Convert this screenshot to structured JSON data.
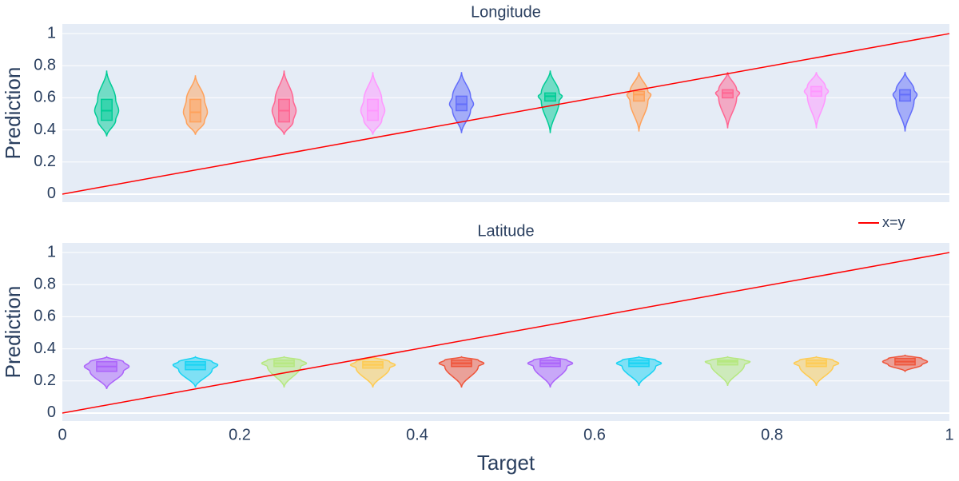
{
  "chart_data": [
    {
      "type": "violin",
      "title": "Longitude",
      "ylabel": "Prediction",
      "xlim": [
        0,
        1
      ],
      "ylim": [
        -0.05,
        1.06
      ],
      "yticks": [
        0,
        0.2,
        0.4,
        0.6,
        0.8,
        1
      ],
      "grid": true,
      "violins": [
        {
          "x": 0.05,
          "color": "#00cc96",
          "min": 0.36,
          "q1": 0.46,
          "median": 0.52,
          "q3": 0.59,
          "max": 0.77
        },
        {
          "x": 0.15,
          "color": "#ffa15a",
          "min": 0.37,
          "q1": 0.45,
          "median": 0.51,
          "q3": 0.59,
          "max": 0.74
        },
        {
          "x": 0.25,
          "color": "#ff6692",
          "min": 0.37,
          "q1": 0.45,
          "median": 0.52,
          "q3": 0.59,
          "max": 0.77
        },
        {
          "x": 0.35,
          "color": "#ff97ff",
          "min": 0.37,
          "q1": 0.46,
          "median": 0.52,
          "q3": 0.59,
          "max": 0.76
        },
        {
          "x": 0.45,
          "color": "#636efa",
          "min": 0.38,
          "q1": 0.52,
          "median": 0.56,
          "q3": 0.61,
          "max": 0.76
        },
        {
          "x": 0.55,
          "color": "#00cc96",
          "min": 0.38,
          "q1": 0.58,
          "median": 0.61,
          "q3": 0.63,
          "max": 0.77
        },
        {
          "x": 0.65,
          "color": "#ffa15a",
          "min": 0.39,
          "q1": 0.58,
          "median": 0.62,
          "q3": 0.64,
          "max": 0.76
        },
        {
          "x": 0.75,
          "color": "#ff6692",
          "min": 0.41,
          "q1": 0.6,
          "median": 0.63,
          "q3": 0.65,
          "max": 0.76
        },
        {
          "x": 0.85,
          "color": "#ff97ff",
          "min": 0.41,
          "q1": 0.61,
          "median": 0.64,
          "q3": 0.67,
          "max": 0.76
        },
        {
          "x": 0.95,
          "color": "#636efa",
          "min": 0.39,
          "q1": 0.58,
          "median": 0.62,
          "q3": 0.65,
          "max": 0.76
        }
      ],
      "line": {
        "x": [
          0,
          1
        ],
        "y": [
          0,
          1
        ],
        "color": "#ff0000"
      }
    },
    {
      "type": "violin",
      "title": "Latitude",
      "ylabel": "Prediction",
      "xlabel": "Target",
      "xlim": [
        0,
        1
      ],
      "xticks": [
        0,
        0.2,
        0.4,
        0.6,
        0.8,
        1
      ],
      "ylim": [
        -0.05,
        1.06
      ],
      "yticks": [
        0,
        0.2,
        0.4,
        0.6,
        0.8,
        1
      ],
      "grid": true,
      "violins": [
        {
          "x": 0.05,
          "color": "#ab63fa",
          "min": 0.15,
          "q1": 0.26,
          "median": 0.29,
          "q3": 0.32,
          "max": 0.35
        },
        {
          "x": 0.15,
          "color": "#19d3f3",
          "min": 0.16,
          "q1": 0.27,
          "median": 0.3,
          "q3": 0.32,
          "max": 0.35
        },
        {
          "x": 0.25,
          "color": "#b6e880",
          "min": 0.16,
          "q1": 0.29,
          "median": 0.31,
          "q3": 0.33,
          "max": 0.35
        },
        {
          "x": 0.35,
          "color": "#fecb52",
          "min": 0.16,
          "q1": 0.28,
          "median": 0.3,
          "q3": 0.32,
          "max": 0.35
        },
        {
          "x": 0.45,
          "color": "#ef553b",
          "min": 0.16,
          "q1": 0.29,
          "median": 0.31,
          "q3": 0.33,
          "max": 0.35
        },
        {
          "x": 0.55,
          "color": "#ab63fa",
          "min": 0.16,
          "q1": 0.29,
          "median": 0.31,
          "q3": 0.33,
          "max": 0.35
        },
        {
          "x": 0.65,
          "color": "#19d3f3",
          "min": 0.17,
          "q1": 0.29,
          "median": 0.31,
          "q3": 0.33,
          "max": 0.35
        },
        {
          "x": 0.75,
          "color": "#b6e880",
          "min": 0.17,
          "q1": 0.3,
          "median": 0.32,
          "q3": 0.33,
          "max": 0.35
        },
        {
          "x": 0.85,
          "color": "#fecb52",
          "min": 0.17,
          "q1": 0.29,
          "median": 0.31,
          "q3": 0.33,
          "max": 0.35
        },
        {
          "x": 0.95,
          "color": "#ef553b",
          "min": 0.26,
          "q1": 0.3,
          "median": 0.32,
          "q3": 0.34,
          "max": 0.36
        }
      ],
      "line": {
        "name": "x=y",
        "x": [
          0,
          1
        ],
        "y": [
          0,
          1
        ],
        "color": "#ff0000"
      }
    }
  ]
}
